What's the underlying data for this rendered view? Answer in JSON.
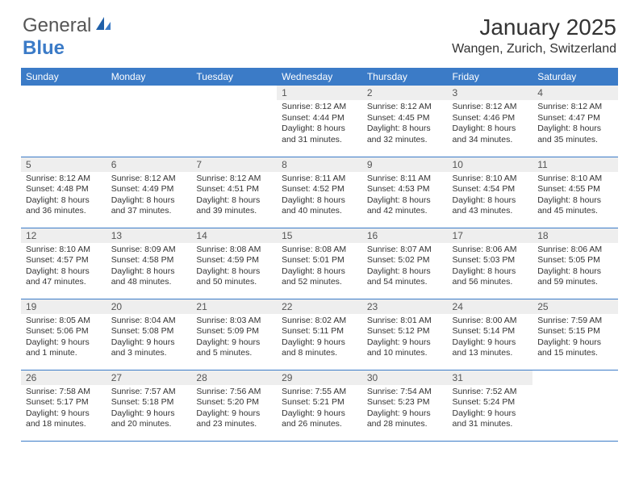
{
  "brand": {
    "text1": "General",
    "text2": "Blue"
  },
  "title": "January 2025",
  "location": "Wangen, Zurich, Switzerland",
  "colors": {
    "header_bg": "#3b7bc7",
    "header_text": "#ffffff",
    "daynum_bg": "#eeeeee",
    "border": "#3b7bc7",
    "page_bg": "#ffffff",
    "text": "#333333"
  },
  "weekdays": [
    "Sunday",
    "Monday",
    "Tuesday",
    "Wednesday",
    "Thursday",
    "Friday",
    "Saturday"
  ],
  "weeks": [
    [
      {
        "day": "",
        "sunrise": "",
        "sunset": "",
        "daylight": ""
      },
      {
        "day": "",
        "sunrise": "",
        "sunset": "",
        "daylight": ""
      },
      {
        "day": "",
        "sunrise": "",
        "sunset": "",
        "daylight": ""
      },
      {
        "day": "1",
        "sunrise": "Sunrise: 8:12 AM",
        "sunset": "Sunset: 4:44 PM",
        "daylight": "Daylight: 8 hours and 31 minutes."
      },
      {
        "day": "2",
        "sunrise": "Sunrise: 8:12 AM",
        "sunset": "Sunset: 4:45 PM",
        "daylight": "Daylight: 8 hours and 32 minutes."
      },
      {
        "day": "3",
        "sunrise": "Sunrise: 8:12 AM",
        "sunset": "Sunset: 4:46 PM",
        "daylight": "Daylight: 8 hours and 34 minutes."
      },
      {
        "day": "4",
        "sunrise": "Sunrise: 8:12 AM",
        "sunset": "Sunset: 4:47 PM",
        "daylight": "Daylight: 8 hours and 35 minutes."
      }
    ],
    [
      {
        "day": "5",
        "sunrise": "Sunrise: 8:12 AM",
        "sunset": "Sunset: 4:48 PM",
        "daylight": "Daylight: 8 hours and 36 minutes."
      },
      {
        "day": "6",
        "sunrise": "Sunrise: 8:12 AM",
        "sunset": "Sunset: 4:49 PM",
        "daylight": "Daylight: 8 hours and 37 minutes."
      },
      {
        "day": "7",
        "sunrise": "Sunrise: 8:12 AM",
        "sunset": "Sunset: 4:51 PM",
        "daylight": "Daylight: 8 hours and 39 minutes."
      },
      {
        "day": "8",
        "sunrise": "Sunrise: 8:11 AM",
        "sunset": "Sunset: 4:52 PM",
        "daylight": "Daylight: 8 hours and 40 minutes."
      },
      {
        "day": "9",
        "sunrise": "Sunrise: 8:11 AM",
        "sunset": "Sunset: 4:53 PM",
        "daylight": "Daylight: 8 hours and 42 minutes."
      },
      {
        "day": "10",
        "sunrise": "Sunrise: 8:10 AM",
        "sunset": "Sunset: 4:54 PM",
        "daylight": "Daylight: 8 hours and 43 minutes."
      },
      {
        "day": "11",
        "sunrise": "Sunrise: 8:10 AM",
        "sunset": "Sunset: 4:55 PM",
        "daylight": "Daylight: 8 hours and 45 minutes."
      }
    ],
    [
      {
        "day": "12",
        "sunrise": "Sunrise: 8:10 AM",
        "sunset": "Sunset: 4:57 PM",
        "daylight": "Daylight: 8 hours and 47 minutes."
      },
      {
        "day": "13",
        "sunrise": "Sunrise: 8:09 AM",
        "sunset": "Sunset: 4:58 PM",
        "daylight": "Daylight: 8 hours and 48 minutes."
      },
      {
        "day": "14",
        "sunrise": "Sunrise: 8:08 AM",
        "sunset": "Sunset: 4:59 PM",
        "daylight": "Daylight: 8 hours and 50 minutes."
      },
      {
        "day": "15",
        "sunrise": "Sunrise: 8:08 AM",
        "sunset": "Sunset: 5:01 PM",
        "daylight": "Daylight: 8 hours and 52 minutes."
      },
      {
        "day": "16",
        "sunrise": "Sunrise: 8:07 AM",
        "sunset": "Sunset: 5:02 PM",
        "daylight": "Daylight: 8 hours and 54 minutes."
      },
      {
        "day": "17",
        "sunrise": "Sunrise: 8:06 AM",
        "sunset": "Sunset: 5:03 PM",
        "daylight": "Daylight: 8 hours and 56 minutes."
      },
      {
        "day": "18",
        "sunrise": "Sunrise: 8:06 AM",
        "sunset": "Sunset: 5:05 PM",
        "daylight": "Daylight: 8 hours and 59 minutes."
      }
    ],
    [
      {
        "day": "19",
        "sunrise": "Sunrise: 8:05 AM",
        "sunset": "Sunset: 5:06 PM",
        "daylight": "Daylight: 9 hours and 1 minute."
      },
      {
        "day": "20",
        "sunrise": "Sunrise: 8:04 AM",
        "sunset": "Sunset: 5:08 PM",
        "daylight": "Daylight: 9 hours and 3 minutes."
      },
      {
        "day": "21",
        "sunrise": "Sunrise: 8:03 AM",
        "sunset": "Sunset: 5:09 PM",
        "daylight": "Daylight: 9 hours and 5 minutes."
      },
      {
        "day": "22",
        "sunrise": "Sunrise: 8:02 AM",
        "sunset": "Sunset: 5:11 PM",
        "daylight": "Daylight: 9 hours and 8 minutes."
      },
      {
        "day": "23",
        "sunrise": "Sunrise: 8:01 AM",
        "sunset": "Sunset: 5:12 PM",
        "daylight": "Daylight: 9 hours and 10 minutes."
      },
      {
        "day": "24",
        "sunrise": "Sunrise: 8:00 AM",
        "sunset": "Sunset: 5:14 PM",
        "daylight": "Daylight: 9 hours and 13 minutes."
      },
      {
        "day": "25",
        "sunrise": "Sunrise: 7:59 AM",
        "sunset": "Sunset: 5:15 PM",
        "daylight": "Daylight: 9 hours and 15 minutes."
      }
    ],
    [
      {
        "day": "26",
        "sunrise": "Sunrise: 7:58 AM",
        "sunset": "Sunset: 5:17 PM",
        "daylight": "Daylight: 9 hours and 18 minutes."
      },
      {
        "day": "27",
        "sunrise": "Sunrise: 7:57 AM",
        "sunset": "Sunset: 5:18 PM",
        "daylight": "Daylight: 9 hours and 20 minutes."
      },
      {
        "day": "28",
        "sunrise": "Sunrise: 7:56 AM",
        "sunset": "Sunset: 5:20 PM",
        "daylight": "Daylight: 9 hours and 23 minutes."
      },
      {
        "day": "29",
        "sunrise": "Sunrise: 7:55 AM",
        "sunset": "Sunset: 5:21 PM",
        "daylight": "Daylight: 9 hours and 26 minutes."
      },
      {
        "day": "30",
        "sunrise": "Sunrise: 7:54 AM",
        "sunset": "Sunset: 5:23 PM",
        "daylight": "Daylight: 9 hours and 28 minutes."
      },
      {
        "day": "31",
        "sunrise": "Sunrise: 7:52 AM",
        "sunset": "Sunset: 5:24 PM",
        "daylight": "Daylight: 9 hours and 31 minutes."
      },
      {
        "day": "",
        "sunrise": "",
        "sunset": "",
        "daylight": ""
      }
    ]
  ]
}
